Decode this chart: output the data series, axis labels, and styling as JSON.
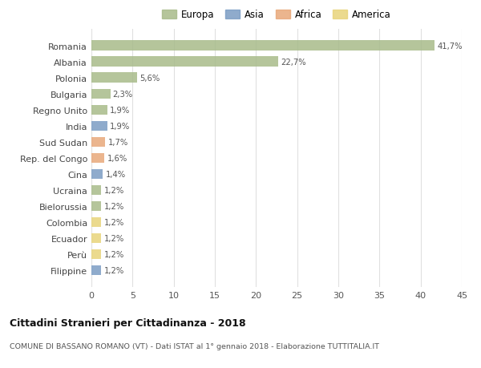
{
  "categories": [
    "Romania",
    "Albania",
    "Polonia",
    "Bulgaria",
    "Regno Unito",
    "India",
    "Sud Sudan",
    "Rep. del Congo",
    "Cina",
    "Ucraina",
    "Bielorussia",
    "Colombia",
    "Ecuador",
    "Perù",
    "Filippine"
  ],
  "values": [
    41.7,
    22.7,
    5.6,
    2.3,
    1.9,
    1.9,
    1.7,
    1.6,
    1.4,
    1.2,
    1.2,
    1.2,
    1.2,
    1.2,
    1.2
  ],
  "labels": [
    "41,7%",
    "22,7%",
    "5,6%",
    "2,3%",
    "1,9%",
    "1,9%",
    "1,7%",
    "1,6%",
    "1,4%",
    "1,2%",
    "1,2%",
    "1,2%",
    "1,2%",
    "1,2%",
    "1,2%"
  ],
  "bar_colors": [
    "#a8bb8a",
    "#a8bb8a",
    "#a8bb8a",
    "#a8bb8a",
    "#a8bb8a",
    "#7b9dc4",
    "#e8a87a",
    "#e8a87a",
    "#7b9dc4",
    "#a8bb8a",
    "#a8bb8a",
    "#e8d47a",
    "#e8d47a",
    "#e8d47a",
    "#7b9dc4"
  ],
  "legend": [
    {
      "label": "Europa",
      "color": "#a8bb8a"
    },
    {
      "label": "Asia",
      "color": "#7b9dc4"
    },
    {
      "label": "Africa",
      "color": "#e8a87a"
    },
    {
      "label": "America",
      "color": "#e8d47a"
    }
  ],
  "xlim": [
    0,
    45
  ],
  "xticks": [
    0,
    5,
    10,
    15,
    20,
    25,
    30,
    35,
    40,
    45
  ],
  "title": "Cittadini Stranieri per Cittadinanza - 2018",
  "subtitle": "COMUNE DI BASSANO ROMANO (VT) - Dati ISTAT al 1° gennaio 2018 - Elaborazione TUTTITALIA.IT",
  "background_color": "#ffffff",
  "grid_color": "#e0e0e0"
}
